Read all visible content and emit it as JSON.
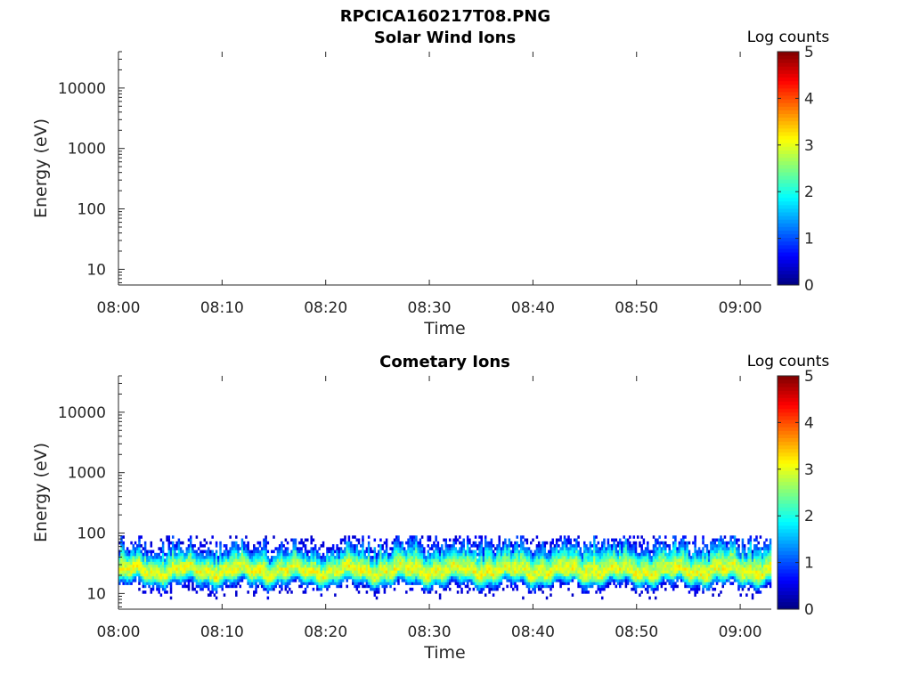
{
  "figure_title": "RPCICA160217T08.PNG",
  "chart_data": [
    {
      "type": "heatmap",
      "title": "Solar Wind Ions",
      "xlabel": "Time",
      "ylabel": "Energy (eV)",
      "x_ticks": [
        "08:00",
        "08:10",
        "08:20",
        "08:30",
        "08:40",
        "08:50",
        "09:00"
      ],
      "y_ticks": [
        "10",
        "100",
        "1000",
        "10000"
      ],
      "y_scale": "log",
      "ylim": [
        5.5,
        40000
      ],
      "xlim": [
        "08:00",
        "09:03"
      ],
      "colorbar": {
        "label": "Log counts",
        "ticks": [
          "0",
          "1",
          "2",
          "3",
          "4",
          "5"
        ],
        "range": [
          0,
          5
        ],
        "colormap": "jet"
      },
      "band": null
    },
    {
      "type": "heatmap",
      "title": "Cometary Ions",
      "xlabel": "Time",
      "ylabel": "Energy (eV)",
      "x_ticks": [
        "08:00",
        "08:10",
        "08:20",
        "08:30",
        "08:40",
        "08:50",
        "09:00"
      ],
      "y_ticks": [
        "10",
        "100",
        "1000",
        "10000"
      ],
      "y_scale": "log",
      "ylim": [
        5.5,
        40000
      ],
      "xlim": [
        "08:00",
        "09:03"
      ],
      "colorbar": {
        "label": "Log counts",
        "ticks": [
          "0",
          "1",
          "2",
          "3",
          "4",
          "5"
        ],
        "range": [
          0,
          5
        ],
        "colormap": "jet"
      },
      "band": {
        "energy_peak_ev": 22,
        "energy_low_ev": 9,
        "energy_high_ev": 85,
        "peak_log_counts": 3,
        "time_start": "08:00",
        "time_end": "09:03"
      }
    }
  ]
}
